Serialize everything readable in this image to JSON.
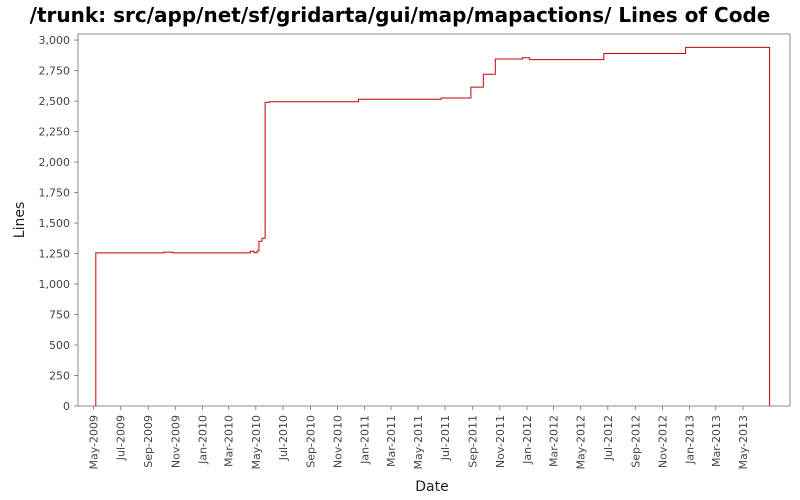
{
  "chart_data": {
    "type": "line",
    "title": "/trunk: src/app/net/sf/gridarta/gui/map/mapactions/ Lines of Code",
    "xlabel": "Date",
    "ylabel": "Lines",
    "ylim": [
      0,
      3000
    ],
    "xlim": [
      "2009-04-01",
      "2013-08-15"
    ],
    "grid": false,
    "step": true,
    "series_color": "#cc0000",
    "plot_background": "#ffffff",
    "y_ticks": [
      0,
      250,
      500,
      750,
      1000,
      1250,
      1500,
      1750,
      2000,
      2250,
      2500,
      2750,
      3000
    ],
    "y_tick_labels": [
      "0",
      "250",
      "500",
      "750",
      "1,000",
      "1,250",
      "1,500",
      "1,750",
      "2,000",
      "2,250",
      "2,500",
      "2,750",
      "3,000"
    ],
    "x_ticks": [
      {
        "date": "2009-05-01",
        "label": "May-2009"
      },
      {
        "date": "2009-07-01",
        "label": "Jul-2009"
      },
      {
        "date": "2009-09-01",
        "label": "Sep-2009"
      },
      {
        "date": "2009-11-01",
        "label": "Nov-2009"
      },
      {
        "date": "2010-01-01",
        "label": "Jan-2010"
      },
      {
        "date": "2010-03-01",
        "label": "Mar-2010"
      },
      {
        "date": "2010-05-01",
        "label": "May-2010"
      },
      {
        "date": "2010-07-01",
        "label": "Jul-2010"
      },
      {
        "date": "2010-09-01",
        "label": "Sep-2010"
      },
      {
        "date": "2010-11-01",
        "label": "Nov-2010"
      },
      {
        "date": "2011-01-01",
        "label": "Jan-2011"
      },
      {
        "date": "2011-03-01",
        "label": "Mar-2011"
      },
      {
        "date": "2011-05-01",
        "label": "May-2011"
      },
      {
        "date": "2011-07-01",
        "label": "Jul-2011"
      },
      {
        "date": "2011-09-01",
        "label": "Sep-2011"
      },
      {
        "date": "2011-11-01",
        "label": "Nov-2011"
      },
      {
        "date": "2012-01-01",
        "label": "Jan-2012"
      },
      {
        "date": "2012-03-01",
        "label": "Mar-2012"
      },
      {
        "date": "2012-05-01",
        "label": "May-2012"
      },
      {
        "date": "2012-07-01",
        "label": "Jul-2012"
      },
      {
        "date": "2012-09-01",
        "label": "Sep-2012"
      },
      {
        "date": "2012-11-01",
        "label": "Nov-2012"
      },
      {
        "date": "2013-01-01",
        "label": "Jan-2013"
      },
      {
        "date": "2013-03-01",
        "label": "Mar-2013"
      },
      {
        "date": "2013-05-01",
        "label": "May-2013"
      }
    ],
    "series": [
      {
        "points": [
          {
            "x": "2009-05-06",
            "y": 0
          },
          {
            "x": "2009-05-06",
            "y": 1255
          },
          {
            "x": "2009-10-06",
            "y": 1262
          },
          {
            "x": "2009-10-27",
            "y": 1255
          },
          {
            "x": "2010-04-19",
            "y": 1268
          },
          {
            "x": "2010-04-27",
            "y": 1258
          },
          {
            "x": "2010-05-04",
            "y": 1272
          },
          {
            "x": "2010-05-08",
            "y": 1350
          },
          {
            "x": "2010-05-15",
            "y": 1375
          },
          {
            "x": "2010-05-22",
            "y": 2490
          },
          {
            "x": "2010-06-01",
            "y": 2495
          },
          {
            "x": "2010-12-18",
            "y": 2515
          },
          {
            "x": "2011-06-22",
            "y": 2525
          },
          {
            "x": "2011-08-28",
            "y": 2615
          },
          {
            "x": "2011-09-25",
            "y": 2720
          },
          {
            "x": "2011-10-22",
            "y": 2845
          },
          {
            "x": "2011-12-22",
            "y": 2855
          },
          {
            "x": "2012-01-07",
            "y": 2840
          },
          {
            "x": "2012-06-22",
            "y": 2890
          },
          {
            "x": "2012-12-23",
            "y": 2940
          },
          {
            "x": "2013-06-30",
            "y": 2940
          },
          {
            "x": "2013-06-30",
            "y": 0
          }
        ]
      }
    ]
  }
}
